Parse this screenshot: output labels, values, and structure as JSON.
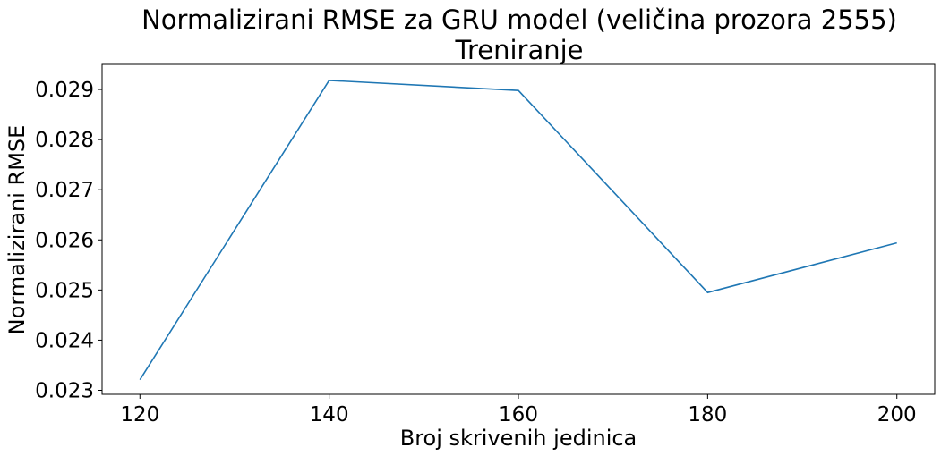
{
  "chart_data": {
    "type": "line",
    "title": "Normalizirani RMSE za GRU model (veličina prozora 2555)",
    "subtitle": "Treniranje",
    "xlabel": "Broj skrivenih jedinica",
    "ylabel": "Normalizirani RMSE",
    "x": [
      120,
      140,
      160,
      180,
      200
    ],
    "series": [
      {
        "values": [
          0.02321,
          0.02918,
          0.02898,
          0.02495,
          0.02594
        ],
        "color": "#1f77b4"
      }
    ],
    "xticks": [
      120,
      140,
      160,
      180,
      200
    ],
    "xtick_labels": [
      "120",
      "140",
      "160",
      "180",
      "200"
    ],
    "yticks": [
      0.023,
      0.024,
      0.025,
      0.026,
      0.027,
      0.028,
      0.029
    ],
    "ytick_labels": [
      "0.023",
      "0.024",
      "0.025",
      "0.026",
      "0.027",
      "0.028",
      "0.029"
    ],
    "xlim": [
      116,
      204
    ],
    "ylim": [
      0.02292,
      0.0295
    ],
    "grid": false,
    "legend": false
  }
}
